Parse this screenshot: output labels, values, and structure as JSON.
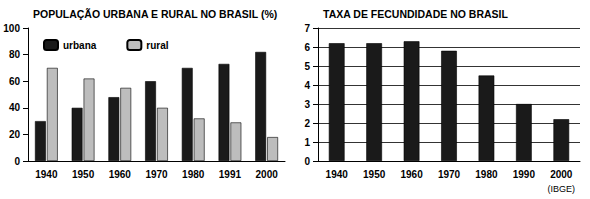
{
  "chart_data": [
    {
      "type": "bar",
      "title": "POPULAÇÃO URBANA E RURAL NO BRASIL (%)",
      "categories": [
        "1940",
        "1950",
        "1960",
        "1970",
        "1980",
        "1991",
        "2000"
      ],
      "series": [
        {
          "name": "urbana",
          "color": "#1a1a1a",
          "values": [
            30,
            40,
            48,
            60,
            70,
            73,
            82
          ]
        },
        {
          "name": "rural",
          "color": "#bdbdbd",
          "values": [
            70,
            62,
            55,
            40,
            32,
            29,
            18
          ]
        }
      ],
      "ylim": [
        0,
        100
      ],
      "yticks": [
        0,
        20,
        40,
        60,
        80,
        100
      ],
      "grid": false,
      "legend": "upper left"
    },
    {
      "type": "bar",
      "title": "TAXA DE FECUNDIDADE NO BRASIL",
      "categories": [
        "1940",
        "1950",
        "1960",
        "1970",
        "1980",
        "1990",
        "2000"
      ],
      "values": [
        6.2,
        6.2,
        6.3,
        5.8,
        4.5,
        3.0,
        2.2
      ],
      "color": "#1a1a1a",
      "ylim": [
        0,
        7
      ],
      "yticks": [
        0,
        1,
        2,
        3,
        4,
        5,
        6,
        7
      ],
      "grid": true,
      "annotation": "(IBGE)"
    }
  ]
}
